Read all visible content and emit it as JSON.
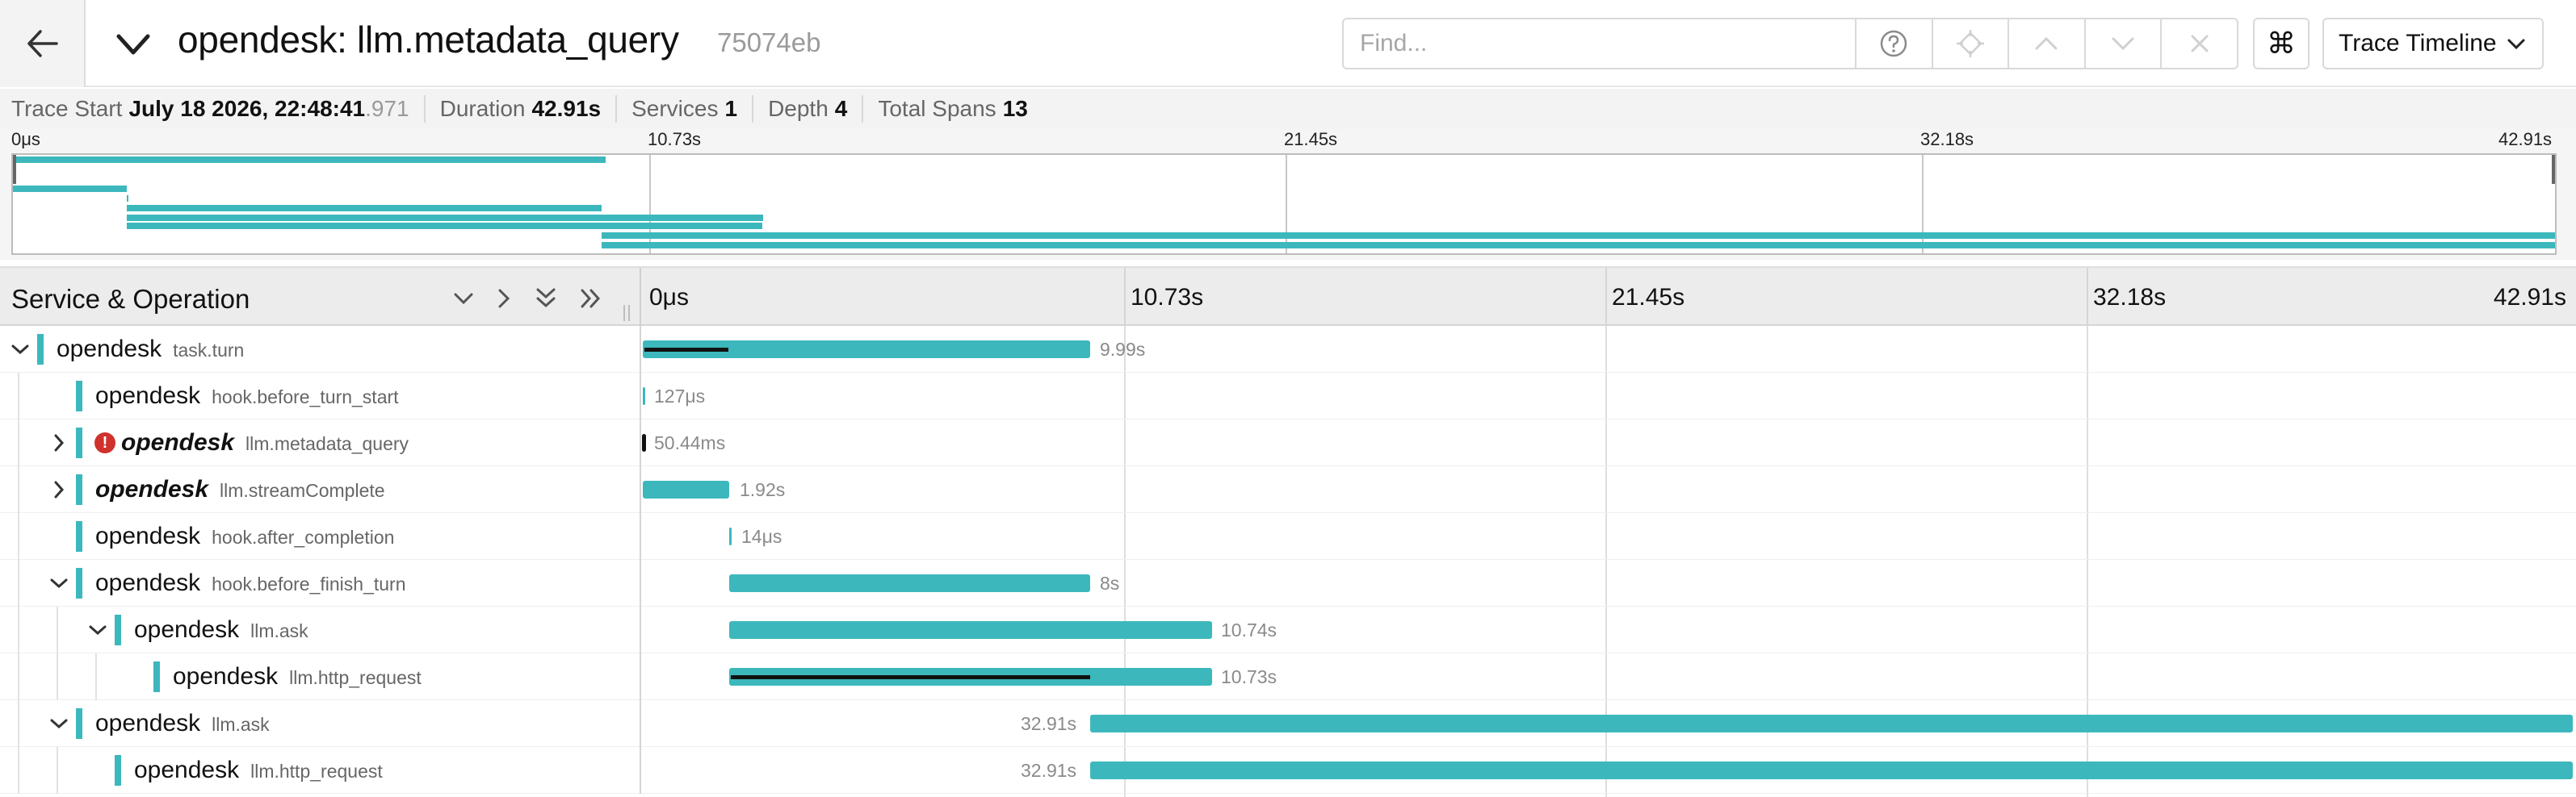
{
  "header": {
    "title": "opendesk: llm.metadata_query",
    "trace_id": "75074eb",
    "find_placeholder": "Find...",
    "view_label": "Trace Timeline"
  },
  "summary": {
    "trace_start_label": "Trace Start",
    "trace_start_value": "July 18 2026, 22:48:41",
    "trace_start_ms": ".971",
    "duration_label": "Duration",
    "duration_value": "42.91s",
    "services_label": "Services",
    "services_value": "1",
    "depth_label": "Depth",
    "depth_value": "4",
    "total_spans_label": "Total Spans",
    "total_spans_value": "13"
  },
  "minimap": {
    "ticks": [
      "0μs",
      "10.73s",
      "21.45s",
      "32.18s",
      "42.91s"
    ]
  },
  "timeline": {
    "column_title": "Service & Operation",
    "ticks": [
      "0μs",
      "10.73s",
      "21.45s",
      "32.18s",
      "42.91s"
    ]
  },
  "colors": {
    "accent": "#3cb8bd",
    "error": "#d0312d"
  },
  "spans": [
    {
      "service": "opendesk",
      "operation": "task.turn",
      "duration": "9.99s",
      "depth": 0,
      "toggle": "expanded",
      "error": false,
      "emphasis": false
    },
    {
      "service": "opendesk",
      "operation": "hook.before_turn_start",
      "duration": "127μs",
      "depth": 1,
      "toggle": "none",
      "error": false,
      "emphasis": false
    },
    {
      "service": "opendesk",
      "operation": "llm.metadata_query",
      "duration": "50.44ms",
      "depth": 1,
      "toggle": "collapsed",
      "error": true,
      "emphasis": true
    },
    {
      "service": "opendesk",
      "operation": "llm.streamComplete",
      "duration": "1.92s",
      "depth": 1,
      "toggle": "collapsed",
      "error": false,
      "emphasis": true
    },
    {
      "service": "opendesk",
      "operation": "hook.after_completion",
      "duration": "14μs",
      "depth": 1,
      "toggle": "none",
      "error": false,
      "emphasis": false
    },
    {
      "service": "opendesk",
      "operation": "hook.before_finish_turn",
      "duration": "8s",
      "depth": 1,
      "toggle": "expanded",
      "error": false,
      "emphasis": false
    },
    {
      "service": "opendesk",
      "operation": "llm.ask",
      "duration": "10.74s",
      "depth": 2,
      "toggle": "expanded",
      "error": false,
      "emphasis": false
    },
    {
      "service": "opendesk",
      "operation": "llm.http_request",
      "duration": "10.73s",
      "depth": 3,
      "toggle": "none",
      "error": false,
      "emphasis": false
    },
    {
      "service": "opendesk",
      "operation": "llm.ask",
      "duration": "32.91s",
      "depth": 1,
      "toggle": "expanded",
      "error": false,
      "emphasis": false
    },
    {
      "service": "opendesk",
      "operation": "llm.http_request",
      "duration": "32.91s",
      "depth": 2,
      "toggle": "none",
      "error": false,
      "emphasis": false
    }
  ]
}
